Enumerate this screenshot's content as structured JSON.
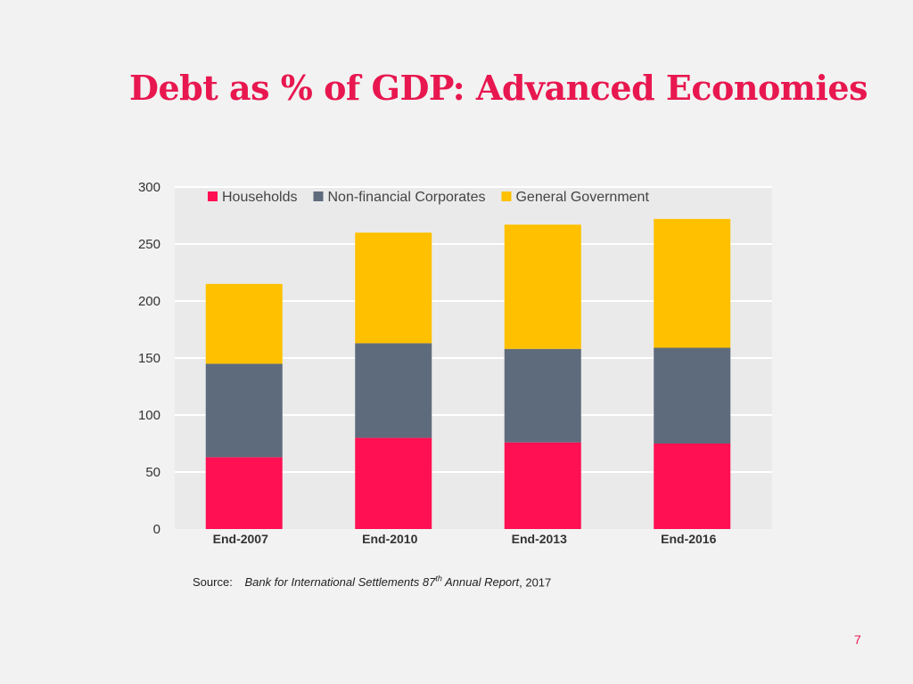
{
  "title": "Debt as % of GDP: Advanced Economies",
  "chart_data": {
    "type": "bar",
    "stacked": true,
    "categories": [
      "End-2007",
      "End-2010",
      "End-2013",
      "End-2016"
    ],
    "series": [
      {
        "name": "Households",
        "color": "#ff1053",
        "values": [
          63,
          80,
          76,
          75
        ]
      },
      {
        "name": "Non-financial Corporates",
        "color": "#5e6b7c",
        "values": [
          82,
          83,
          82,
          84
        ]
      },
      {
        "name": "General Government",
        "color": "#ffc000",
        "values": [
          70,
          97,
          109,
          113
        ]
      }
    ],
    "ylim": [
      0,
      300
    ],
    "yticks": [
      0,
      50,
      100,
      150,
      200,
      250,
      300
    ],
    "grid": true,
    "legend": "top"
  },
  "source": {
    "label": "Source:",
    "title_main": "Bank for International Settlements 87",
    "title_sup": "th",
    "title_rest": " Annual Report",
    "year": ", 2017"
  },
  "page_number": "7"
}
